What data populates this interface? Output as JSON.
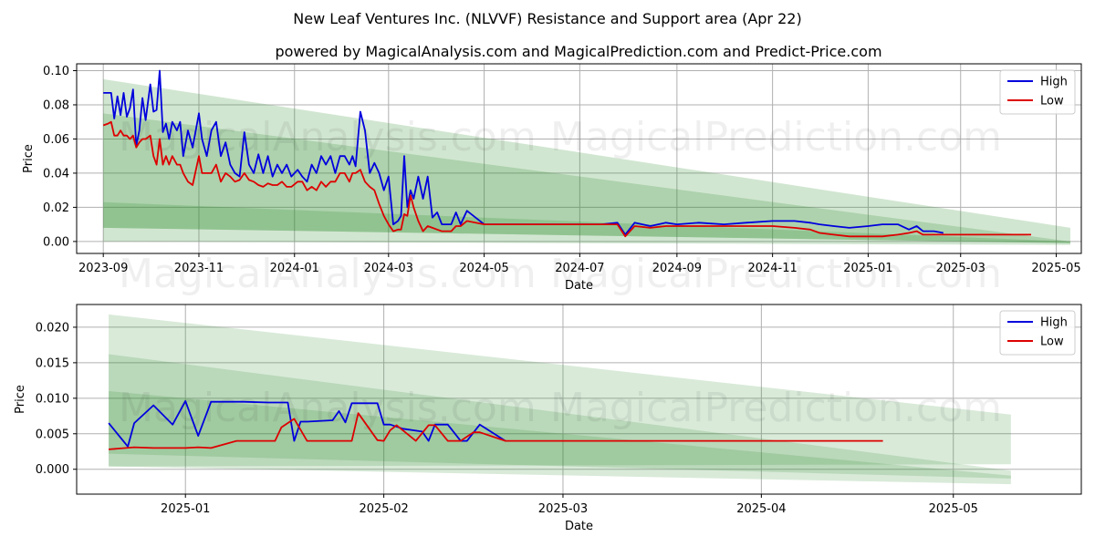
{
  "title": "New Leaf Ventures Inc. (NLVVF) Resistance and Support area (Apr 22)",
  "subtitle": "powered by MagicalAnalysis.com and MagicalPrediction.com and Predict-Price.com",
  "watermarks": [
    "MagicalAnalysis.com",
    "MagicalPrediction.com"
  ],
  "colors": {
    "high": "#0000dd",
    "low": "#dd0000",
    "band": "#2e8b2e",
    "grid": "#b0b0b0"
  },
  "chart_data": [
    {
      "type": "line",
      "name": "top-chart",
      "xlabel": "Date",
      "ylabel": "Price",
      "xlim": [
        "2023-08-15",
        "2025-05-17"
      ],
      "ylim": [
        -0.007,
        0.104
      ],
      "xticks": [
        {
          "date": "2023-09-01",
          "label": "2023-09"
        },
        {
          "date": "2023-11-01",
          "label": "2023-11"
        },
        {
          "date": "2024-01-01",
          "label": "2024-01"
        },
        {
          "date": "2024-03-01",
          "label": "2024-03"
        },
        {
          "date": "2024-05-01",
          "label": "2024-05"
        },
        {
          "date": "2024-07-01",
          "label": "2024-07"
        },
        {
          "date": "2024-09-01",
          "label": "2024-09"
        },
        {
          "date": "2024-11-01",
          "label": "2024-11"
        },
        {
          "date": "2025-01-01",
          "label": "2025-01"
        },
        {
          "date": "2025-03-01",
          "label": "2025-03"
        },
        {
          "date": "2025-05-01",
          "label": "2025-05"
        }
      ],
      "yticks": [
        {
          "value": 0.0,
          "label": "0.00"
        },
        {
          "value": 0.02,
          "label": "0.02"
        },
        {
          "value": 0.04,
          "label": "0.04"
        },
        {
          "value": 0.06,
          "label": "0.06"
        },
        {
          "value": 0.08,
          "label": "0.08"
        },
        {
          "value": 0.1,
          "label": "0.10"
        }
      ],
      "legend": {
        "position": "top-right",
        "entries": [
          "High",
          "Low"
        ]
      },
      "bands": [
        {
          "x": [
            "2023-09-01",
            "2025-05-10"
          ],
          "upper": [
            0.095,
            0.008
          ],
          "lower": [
            0.0,
            -0.002
          ],
          "opacity": 0.22
        },
        {
          "x": [
            "2023-09-01",
            "2025-05-10"
          ],
          "upper": [
            0.075,
            0.0
          ],
          "lower": [
            0.008,
            -0.001
          ],
          "opacity": 0.22
        },
        {
          "x": [
            "2023-09-01",
            "2025-05-10"
          ],
          "upper": [
            0.023,
            0.0
          ],
          "lower": [
            0.008,
            -0.001
          ],
          "opacity": 0.22
        }
      ],
      "series": [
        {
          "name": "High",
          "x": [
            "2023-09-01",
            "2023-09-04",
            "2023-09-06",
            "2023-09-08",
            "2023-09-10",
            "2023-09-12",
            "2023-09-14",
            "2023-09-16",
            "2023-09-18",
            "2023-09-20",
            "2023-09-22",
            "2023-09-24",
            "2023-09-26",
            "2023-09-28",
            "2023-10-01",
            "2023-10-03",
            "2023-10-05",
            "2023-10-07",
            "2023-10-09",
            "2023-10-11",
            "2023-10-13",
            "2023-10-15",
            "2023-10-18",
            "2023-10-20",
            "2023-10-22",
            "2023-10-25",
            "2023-10-28",
            "2023-11-01",
            "2023-11-03",
            "2023-11-06",
            "2023-11-09",
            "2023-11-12",
            "2023-11-15",
            "2023-11-18",
            "2023-11-21",
            "2023-11-24",
            "2023-11-27",
            "2023-11-30",
            "2023-12-03",
            "2023-12-06",
            "2023-12-09",
            "2023-12-12",
            "2023-12-15",
            "2023-12-18",
            "2023-12-21",
            "2023-12-24",
            "2023-12-27",
            "2023-12-30",
            "2024-01-03",
            "2024-01-06",
            "2024-01-09",
            "2024-01-12",
            "2024-01-15",
            "2024-01-18",
            "2024-01-21",
            "2024-01-24",
            "2024-01-27",
            "2024-01-30",
            "2024-02-02",
            "2024-02-05",
            "2024-02-07",
            "2024-02-09",
            "2024-02-12",
            "2024-02-15",
            "2024-02-18",
            "2024-02-21",
            "2024-02-24",
            "2024-02-27",
            "2024-03-01",
            "2024-03-04",
            "2024-03-07",
            "2024-03-09",
            "2024-03-11",
            "2024-03-13",
            "2024-03-15",
            "2024-03-17",
            "2024-03-20",
            "2024-03-23",
            "2024-03-26",
            "2024-03-29",
            "2024-04-01",
            "2024-04-04",
            "2024-04-07",
            "2024-04-10",
            "2024-04-13",
            "2024-04-16",
            "2024-04-20",
            "2024-05-01",
            "2024-05-15",
            "2024-06-01",
            "2024-06-15",
            "2024-07-01",
            "2024-07-15",
            "2024-07-25",
            "2024-07-30",
            "2024-08-05",
            "2024-08-15",
            "2024-08-25",
            "2024-09-01",
            "2024-09-15",
            "2024-10-01",
            "2024-10-15",
            "2024-11-01",
            "2024-11-15",
            "2024-11-25",
            "2024-12-01",
            "2024-12-10",
            "2024-12-20",
            "2025-01-01",
            "2025-01-10",
            "2025-01-20",
            "2025-01-27",
            "2025-02-01",
            "2025-02-05",
            "2025-02-12",
            "2025-02-18"
          ],
          "values": [
            0.087,
            0.087,
            0.087,
            0.072,
            0.085,
            0.074,
            0.087,
            0.073,
            0.078,
            0.089,
            0.056,
            0.065,
            0.084,
            0.071,
            0.092,
            0.076,
            0.077,
            0.1,
            0.064,
            0.069,
            0.06,
            0.07,
            0.065,
            0.07,
            0.05,
            0.065,
            0.055,
            0.075,
            0.06,
            0.05,
            0.065,
            0.07,
            0.05,
            0.058,
            0.045,
            0.04,
            0.038,
            0.064,
            0.045,
            0.04,
            0.051,
            0.04,
            0.05,
            0.038,
            0.045,
            0.04,
            0.045,
            0.038,
            0.042,
            0.038,
            0.035,
            0.045,
            0.04,
            0.05,
            0.045,
            0.05,
            0.04,
            0.05,
            0.05,
            0.045,
            0.05,
            0.044,
            0.076,
            0.065,
            0.04,
            0.046,
            0.04,
            0.03,
            0.038,
            0.01,
            0.012,
            0.015,
            0.05,
            0.02,
            0.03,
            0.025,
            0.038,
            0.025,
            0.038,
            0.014,
            0.017,
            0.01,
            0.01,
            0.01,
            0.017,
            0.01,
            0.018,
            0.01,
            0.01,
            0.01,
            0.01,
            0.01,
            0.01,
            0.011,
            0.004,
            0.011,
            0.009,
            0.011,
            0.01,
            0.011,
            0.01,
            0.011,
            0.012,
            0.012,
            0.011,
            0.01,
            0.009,
            0.008,
            0.009,
            0.01,
            0.01,
            0.007,
            0.009,
            0.006,
            0.006,
            0.005
          ]
        },
        {
          "name": "Low",
          "x": [
            "2023-09-01",
            "2023-09-04",
            "2023-09-06",
            "2023-09-08",
            "2023-09-10",
            "2023-09-12",
            "2023-09-14",
            "2023-09-16",
            "2023-09-18",
            "2023-09-20",
            "2023-09-22",
            "2023-09-24",
            "2023-09-26",
            "2023-09-28",
            "2023-10-01",
            "2023-10-03",
            "2023-10-05",
            "2023-10-07",
            "2023-10-09",
            "2023-10-11",
            "2023-10-13",
            "2023-10-15",
            "2023-10-18",
            "2023-10-20",
            "2023-10-22",
            "2023-10-25",
            "2023-10-28",
            "2023-11-01",
            "2023-11-03",
            "2023-11-06",
            "2023-11-09",
            "2023-11-12",
            "2023-11-15",
            "2023-11-18",
            "2023-11-21",
            "2023-11-24",
            "2023-11-27",
            "2023-11-30",
            "2023-12-03",
            "2023-12-06",
            "2023-12-09",
            "2023-12-12",
            "2023-12-15",
            "2023-12-18",
            "2023-12-21",
            "2023-12-24",
            "2023-12-27",
            "2023-12-30",
            "2024-01-03",
            "2024-01-06",
            "2024-01-09",
            "2024-01-12",
            "2024-01-15",
            "2024-01-18",
            "2024-01-21",
            "2024-01-24",
            "2024-01-27",
            "2024-01-30",
            "2024-02-02",
            "2024-02-05",
            "2024-02-07",
            "2024-02-09",
            "2024-02-12",
            "2024-02-15",
            "2024-02-18",
            "2024-02-21",
            "2024-02-24",
            "2024-02-27",
            "2024-03-01",
            "2024-03-04",
            "2024-03-07",
            "2024-03-09",
            "2024-03-11",
            "2024-03-13",
            "2024-03-15",
            "2024-03-17",
            "2024-03-20",
            "2024-03-23",
            "2024-03-26",
            "2024-03-29",
            "2024-04-01",
            "2024-04-04",
            "2024-04-07",
            "2024-04-10",
            "2024-04-13",
            "2024-04-16",
            "2024-04-20",
            "2024-05-01",
            "2024-05-15",
            "2024-06-01",
            "2024-06-15",
            "2024-07-01",
            "2024-07-15",
            "2024-07-25",
            "2024-07-30",
            "2024-08-05",
            "2024-08-15",
            "2024-08-25",
            "2024-09-01",
            "2024-09-15",
            "2024-10-01",
            "2024-10-15",
            "2024-11-01",
            "2024-11-15",
            "2024-11-25",
            "2024-12-01",
            "2024-12-10",
            "2024-12-20",
            "2025-01-01",
            "2025-01-10",
            "2025-01-20",
            "2025-01-27",
            "2025-02-01",
            "2025-02-05",
            "2025-02-12",
            "2025-02-18",
            "2025-03-01",
            "2025-04-15"
          ],
          "values": [
            0.068,
            0.069,
            0.07,
            0.062,
            0.062,
            0.065,
            0.062,
            0.062,
            0.06,
            0.062,
            0.055,
            0.058,
            0.06,
            0.06,
            0.062,
            0.05,
            0.045,
            0.06,
            0.045,
            0.05,
            0.045,
            0.05,
            0.045,
            0.045,
            0.04,
            0.035,
            0.033,
            0.05,
            0.04,
            0.04,
            0.04,
            0.045,
            0.035,
            0.04,
            0.038,
            0.035,
            0.036,
            0.04,
            0.036,
            0.035,
            0.033,
            0.032,
            0.034,
            0.033,
            0.033,
            0.035,
            0.032,
            0.032,
            0.035,
            0.035,
            0.03,
            0.032,
            0.03,
            0.035,
            0.032,
            0.035,
            0.035,
            0.04,
            0.04,
            0.035,
            0.04,
            0.04,
            0.042,
            0.035,
            0.032,
            0.03,
            0.022,
            0.015,
            0.01,
            0.006,
            0.007,
            0.007,
            0.016,
            0.015,
            0.027,
            0.02,
            0.012,
            0.006,
            0.009,
            0.008,
            0.007,
            0.006,
            0.006,
            0.006,
            0.009,
            0.009,
            0.012,
            0.01,
            0.01,
            0.01,
            0.01,
            0.01,
            0.01,
            0.01,
            0.003,
            0.009,
            0.008,
            0.009,
            0.009,
            0.009,
            0.009,
            0.009,
            0.009,
            0.008,
            0.007,
            0.005,
            0.004,
            0.003,
            0.003,
            0.003,
            0.004,
            0.005,
            0.006,
            0.004,
            0.004,
            0.004,
            0.004,
            0.004
          ]
        }
      ]
    },
    {
      "type": "line",
      "name": "bottom-chart",
      "xlabel": "Date",
      "ylabel": "Price",
      "xlim": [
        "2024-12-15",
        "2025-05-21"
      ],
      "ylim": [
        -0.0035,
        0.0232
      ],
      "xticks": [
        {
          "date": "2025-01-01",
          "label": "2025-01"
        },
        {
          "date": "2025-02-01",
          "label": "2025-02"
        },
        {
          "date": "2025-03-01",
          "label": "2025-03"
        },
        {
          "date": "2025-04-01",
          "label": "2025-04"
        },
        {
          "date": "2025-05-01",
          "label": "2025-05"
        }
      ],
      "yticks": [
        {
          "value": 0.0,
          "label": "0.000"
        },
        {
          "value": 0.005,
          "label": "0.005"
        },
        {
          "value": 0.01,
          "label": "0.010"
        },
        {
          "value": 0.015,
          "label": "0.015"
        },
        {
          "value": 0.02,
          "label": "0.020"
        }
      ],
      "legend": {
        "position": "top-right",
        "entries": [
          "High",
          "Low"
        ]
      },
      "bands": [
        {
          "x": [
            "2024-12-20",
            "2025-05-10"
          ],
          "upper": [
            0.0218,
            0.0077
          ],
          "lower": [
            0.0004,
            0.0007
          ],
          "opacity": 0.18
        },
        {
          "x": [
            "2024-12-20",
            "2025-05-10"
          ],
          "upper": [
            0.0162,
            -0.0002
          ],
          "lower": [
            0.0004,
            -0.0021
          ],
          "opacity": 0.18
        },
        {
          "x": [
            "2024-12-20",
            "2025-05-10"
          ],
          "upper": [
            0.011,
            -0.0009
          ],
          "lower": [
            0.0022,
            -0.0013
          ],
          "opacity": 0.18
        }
      ],
      "series": [
        {
          "name": "High",
          "x": [
            "2024-12-20",
            "2024-12-23",
            "2024-12-24",
            "2024-12-27",
            "2024-12-30",
            "2025-01-01",
            "2025-01-03",
            "2025-01-05",
            "2025-01-10",
            "2025-01-14",
            "2025-01-17",
            "2025-01-18",
            "2025-01-19",
            "2025-01-20",
            "2025-01-24",
            "2025-01-25",
            "2025-01-26",
            "2025-01-27",
            "2025-01-31",
            "2025-02-01",
            "2025-02-02",
            "2025-02-04",
            "2025-02-07",
            "2025-02-08",
            "2025-02-09",
            "2025-02-11",
            "2025-02-13",
            "2025-02-14",
            "2025-02-16",
            "2025-02-20"
          ],
          "values": [
            0.0065,
            0.0032,
            0.0065,
            0.009,
            0.0063,
            0.0096,
            0.0047,
            0.0095,
            0.0095,
            0.0094,
            0.0094,
            0.004,
            0.0067,
            0.0067,
            0.0069,
            0.0082,
            0.0066,
            0.0093,
            0.0093,
            0.0063,
            0.0063,
            0.0057,
            0.0053,
            0.004,
            0.0063,
            0.0063,
            0.004,
            0.004,
            0.0063,
            0.004
          ]
        },
        {
          "name": "Low",
          "x": [
            "2024-12-20",
            "2024-12-24",
            "2024-12-27",
            "2024-12-30",
            "2025-01-01",
            "2025-01-03",
            "2025-01-05",
            "2025-01-09",
            "2025-01-12",
            "2025-01-15",
            "2025-01-16",
            "2025-01-18",
            "2025-01-20",
            "2025-01-27",
            "2025-01-28",
            "2025-01-31",
            "2025-02-01",
            "2025-02-02",
            "2025-02-03",
            "2025-02-06",
            "2025-02-08",
            "2025-02-09",
            "2025-02-11",
            "2025-02-13",
            "2025-02-15",
            "2025-02-16",
            "2025-02-20",
            "2025-04-20"
          ],
          "values": [
            0.0028,
            0.0031,
            0.003,
            0.003,
            0.003,
            0.0031,
            0.003,
            0.004,
            0.004,
            0.004,
            0.0059,
            0.0071,
            0.004,
            0.004,
            0.0079,
            0.0041,
            0.004,
            0.0055,
            0.0062,
            0.004,
            0.0062,
            0.0062,
            0.004,
            0.004,
            0.0052,
            0.0052,
            0.004,
            0.004
          ]
        }
      ]
    }
  ]
}
